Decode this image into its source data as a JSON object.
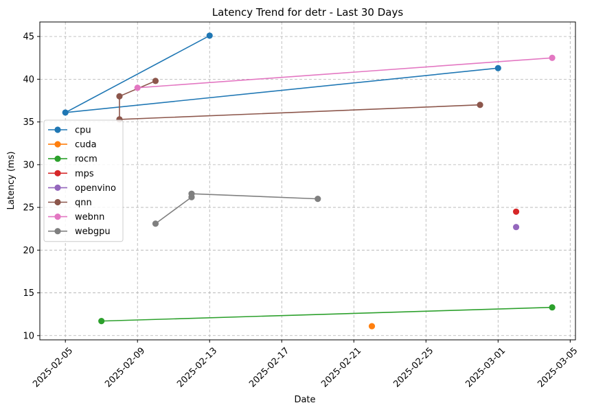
{
  "chart_data": {
    "type": "line",
    "title": "Latency Trend for detr - Last 30 Days",
    "xlabel": "Date",
    "ylabel": "Latency (ms)",
    "xlim": [
      "2025-02-03T14:00",
      "2025-03-05T07:00"
    ],
    "ylim": [
      9.5,
      46.7
    ],
    "x_ticks": [
      "2025-02-05",
      "2025-02-09",
      "2025-02-13",
      "2025-02-17",
      "2025-02-21",
      "2025-02-25",
      "2025-03-01",
      "2025-03-05"
    ],
    "y_ticks": [
      10,
      15,
      20,
      25,
      30,
      35,
      40,
      45
    ],
    "grid": true,
    "legend_position": "center-left",
    "series": [
      {
        "name": "cpu",
        "color": "#1f77b4",
        "points": [
          [
            "2025-02-13",
            45.1
          ],
          [
            "2025-02-05",
            36.1
          ],
          [
            "2025-03-01",
            41.3
          ]
        ]
      },
      {
        "name": "cuda",
        "color": "#ff7f0e",
        "points": [
          [
            "2025-02-22",
            11.1
          ]
        ]
      },
      {
        "name": "rocm",
        "color": "#2ca02c",
        "points": [
          [
            "2025-02-07",
            11.7
          ],
          [
            "2025-03-04",
            13.3
          ]
        ]
      },
      {
        "name": "mps",
        "color": "#d62728",
        "points": [
          [
            "2025-03-02",
            24.5
          ]
        ]
      },
      {
        "name": "openvino",
        "color": "#9467bd",
        "points": [
          [
            "2025-03-02",
            22.7
          ]
        ]
      },
      {
        "name": "qnn",
        "color": "#8c564b",
        "points": [
          [
            "2025-02-10",
            39.8
          ],
          [
            "2025-02-08",
            38.0
          ],
          [
            "2025-02-08",
            35.3
          ],
          [
            "2025-02-28",
            37.0
          ]
        ]
      },
      {
        "name": "webnn",
        "color": "#e377c2",
        "points": [
          [
            "2025-02-09",
            39.0
          ],
          [
            "2025-03-04",
            42.5
          ]
        ]
      },
      {
        "name": "webgpu",
        "color": "#7f7f7f",
        "points": [
          [
            "2025-02-10",
            23.1
          ],
          [
            "2025-02-12",
            26.2
          ],
          [
            "2025-02-12",
            26.6
          ],
          [
            "2025-02-19",
            26.0
          ]
        ]
      }
    ]
  }
}
